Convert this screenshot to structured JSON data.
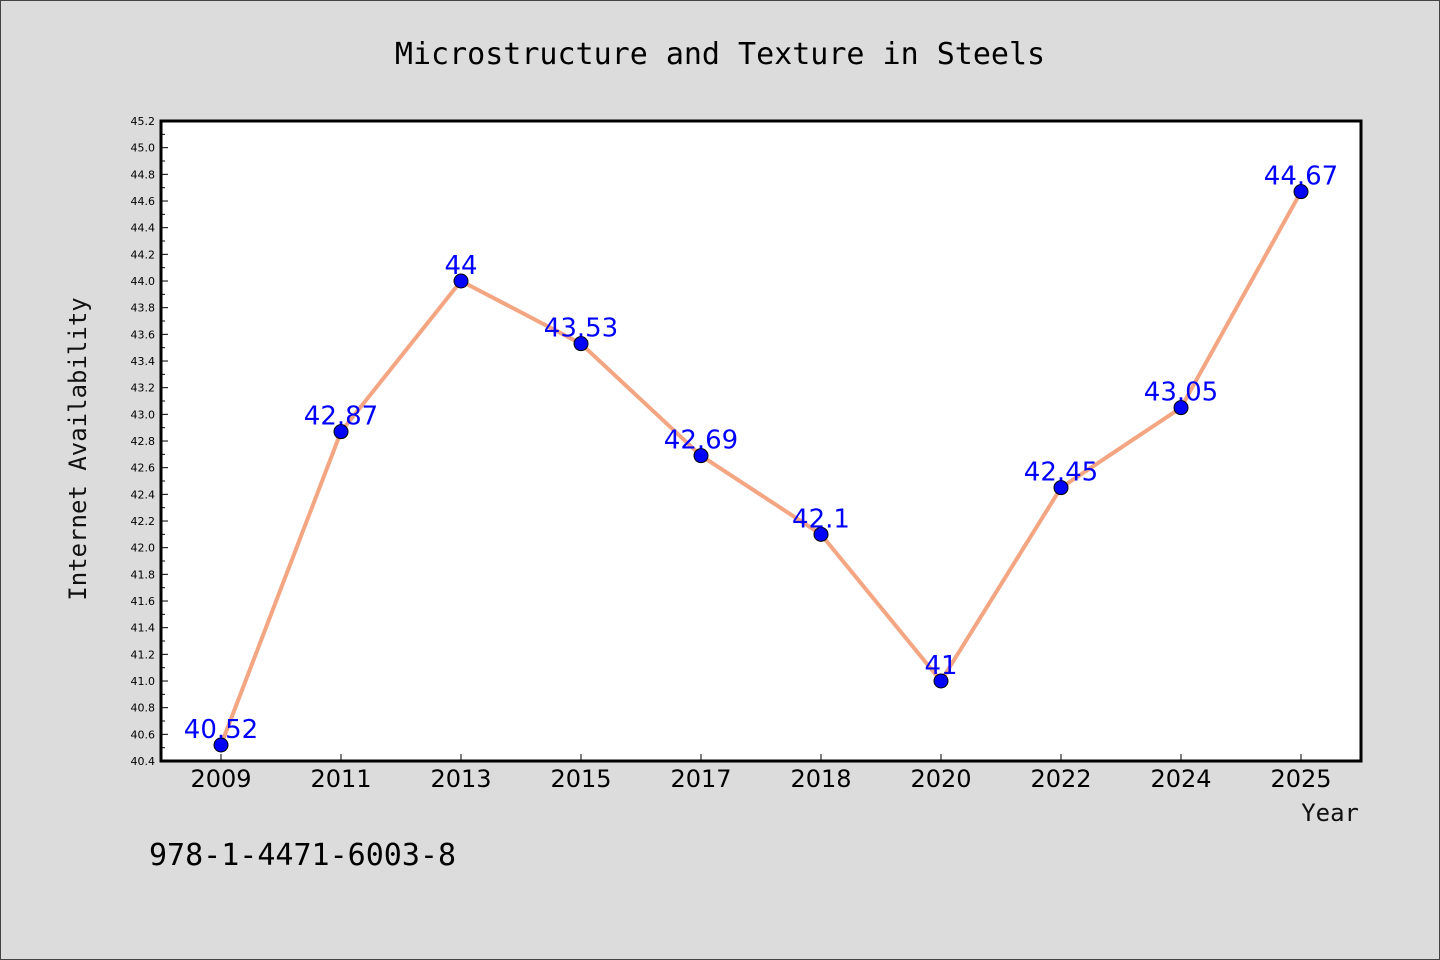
{
  "chart_data": {
    "type": "line",
    "title": "Microstructure and Texture in Steels",
    "xlabel": "Year",
    "ylabel": "Internet Availability",
    "categories": [
      "2009",
      "2011",
      "2013",
      "2015",
      "2017",
      "2018",
      "2020",
      "2022",
      "2024",
      "2025"
    ],
    "series": [
      {
        "values": [
          40.52,
          42.87,
          44,
          43.53,
          42.69,
          42.1,
          41,
          42.45,
          43.05,
          44.67
        ],
        "data_labels": [
          "40.52",
          "42.87",
          "44",
          "43.53",
          "42.69",
          "42.1",
          "41",
          "42.45",
          "43.05",
          "44.67"
        ]
      }
    ],
    "ylim": [
      40.4,
      45.2
    ],
    "yticks": [
      "40.4",
      "40.6",
      "40.8",
      "41.0",
      "41.2",
      "41.4",
      "41.6",
      "41.8",
      "42.0",
      "42.2",
      "42.4",
      "42.6",
      "42.8",
      "43.0",
      "43.2",
      "43.4",
      "43.6",
      "43.8",
      "44.0",
      "44.2",
      "44.4",
      "44.6",
      "44.8",
      "45.0",
      "45.2"
    ],
    "grid": false,
    "line_color": "#f4a582",
    "marker_color": "#0000ff",
    "label_color": "#0000ff"
  },
  "footer": {
    "code": "978-1-4471-6003-8"
  },
  "colors": {
    "background": "#dcdcdc",
    "plot_background": "#ffffff"
  }
}
